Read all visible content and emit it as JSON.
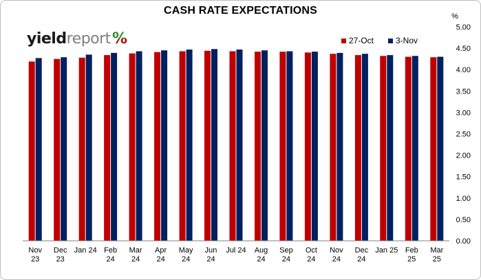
{
  "chart_data": {
    "type": "bar",
    "title": "CASH RATE EXPECTATIONS",
    "ylabel": "%",
    "ylim": [
      0,
      5
    ],
    "yticks": [
      "0.00",
      "0.50",
      "1.00",
      "1.50",
      "2.00",
      "2.50",
      "3.00",
      "3.50",
      "4.00",
      "4.50",
      "5.00"
    ],
    "y_axis_side": "right",
    "grid": false,
    "legend_position": "top-right",
    "categories": [
      "Nov 23",
      "Dec 23",
      "Jan 24",
      "Feb 24",
      "Mar 24",
      "Apr 24",
      "May 24",
      "Jun 24",
      "Jul 24",
      "Aug 24",
      "Sep 24",
      "Oct 24",
      "Nov 24",
      "Dec 24",
      "Jan 25",
      "Feb 25",
      "Mar 25"
    ],
    "category_label_lines": [
      [
        "Nov",
        "23"
      ],
      [
        "Dec",
        "23"
      ],
      [
        "Jan 24"
      ],
      [
        "Feb",
        "24"
      ],
      [
        "Mar",
        "24"
      ],
      [
        "Apr",
        "24"
      ],
      [
        "May",
        "24"
      ],
      [
        "Jun",
        "24"
      ],
      [
        "Jul 24"
      ],
      [
        "Aug",
        "24"
      ],
      [
        "Sep",
        "24"
      ],
      [
        "Oct",
        "24"
      ],
      [
        "Nov",
        "24"
      ],
      [
        "Dec",
        "24"
      ],
      [
        "Jan 25"
      ],
      [
        "Feb",
        "25"
      ],
      [
        "Mar",
        "25"
      ]
    ],
    "series": [
      {
        "name": "27-Oct",
        "color": "#c00000",
        "values": [
          4.19,
          4.25,
          4.28,
          4.34,
          4.38,
          4.41,
          4.43,
          4.44,
          4.43,
          4.42,
          4.42,
          4.4,
          4.37,
          4.34,
          4.32,
          4.3,
          4.29
        ]
      },
      {
        "name": "3-Nov",
        "color": "#002060",
        "values": [
          4.27,
          4.29,
          4.35,
          4.39,
          4.43,
          4.45,
          4.47,
          4.48,
          4.47,
          4.45,
          4.43,
          4.42,
          4.39,
          4.37,
          4.34,
          4.32,
          4.3
        ]
      }
    ]
  },
  "logo": {
    "text_primary": "yield",
    "text_secondary": "report",
    "text_symbol": "%",
    "color_primary": "#1a1a1a",
    "color_secondary": "#7f7f7f",
    "color_symbol_top": "#2e8b2e",
    "color_symbol_bottom": "#c00000"
  }
}
